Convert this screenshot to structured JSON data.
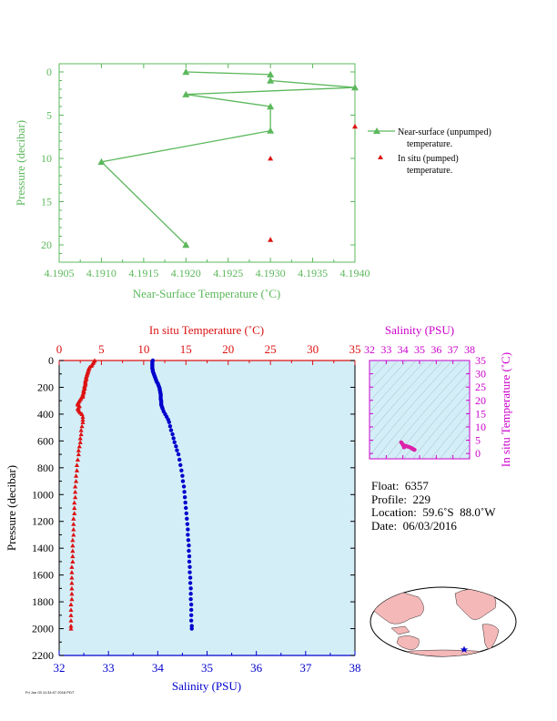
{
  "chart_data": [
    {
      "type": "line",
      "xlabel": "Near-Surface Temperature (˚C)",
      "ylabel": "Pressure (decibar)",
      "xlim": [
        4.1905,
        4.194
      ],
      "ylim": [
        0,
        22
      ],
      "y_inverted": true,
      "x_ticks": [
        "4.1905",
        "4.1910",
        "4.1915",
        "4.1920",
        "4.1925",
        "4.1930",
        "4.1935",
        "4.1940"
      ],
      "y_ticks": [
        "0",
        "5",
        "10",
        "15",
        "20"
      ],
      "legend_position": "right",
      "series": [
        {
          "name": "Near-surface (unpumped) temperature.",
          "legend_line1": "Near-surface (unpumped)",
          "legend_line2": "temperature.",
          "color": "#5cb85c",
          "marker": "triangle",
          "points": [
            {
              "x": 4.192,
              "y": 0.0
            },
            {
              "x": 4.193,
              "y": 0.3
            },
            {
              "x": 4.193,
              "y": 1.0
            },
            {
              "x": 4.194,
              "y": 1.8
            },
            {
              "x": 4.192,
              "y": 2.6
            },
            {
              "x": 4.193,
              "y": 4.0
            },
            {
              "x": 4.193,
              "y": 6.8
            },
            {
              "x": 4.191,
              "y": 10.4
            },
            {
              "x": 4.192,
              "y": 20.0
            }
          ]
        },
        {
          "name": "In situ (pumped) temperature.",
          "legend_line1": "In situ (pumped)",
          "legend_line2": "temperature.",
          "color": "#dd1111",
          "marker": "triangle",
          "points": [
            {
              "x": 4.194,
              "y": 6.3
            },
            {
              "x": 4.193,
              "y": 10.0
            },
            {
              "x": 4.193,
              "y": 19.4
            }
          ]
        }
      ]
    },
    {
      "type": "scatter",
      "xlabel": "Salinity (PSU)",
      "x2label": "In situ Temperature (˚C)",
      "ylabel": "Pressure (decibar)",
      "xlim": [
        32,
        38
      ],
      "x2lim": [
        0,
        35
      ],
      "ylim": [
        0,
        2200
      ],
      "y_inverted": true,
      "x_ticks": [
        "32",
        "33",
        "34",
        "35",
        "36",
        "37",
        "38"
      ],
      "x2_ticks": [
        "0",
        "5",
        "10",
        "15",
        "20",
        "25",
        "30",
        "35"
      ],
      "y_ticks": [
        "0",
        "200",
        "400",
        "600",
        "800",
        "1000",
        "1200",
        "1400",
        "1600",
        "1800",
        "2000",
        "2200"
      ],
      "background": "#d4eef8",
      "series": [
        {
          "name": "In situ Temperature",
          "color": "#dd1111",
          "marker": "triangle",
          "axis": "top",
          "points": [
            [
              4.2,
              0
            ],
            [
              4.1,
              10
            ],
            [
              4.0,
              20
            ],
            [
              3.9,
              30
            ],
            [
              3.8,
              40
            ],
            [
              3.6,
              50
            ],
            [
              3.5,
              60
            ],
            [
              3.5,
              70
            ],
            [
              3.4,
              80
            ],
            [
              3.4,
              90
            ],
            [
              3.3,
              100
            ],
            [
              3.3,
              110
            ],
            [
              3.2,
              120
            ],
            [
              3.2,
              130
            ],
            [
              3.2,
              140
            ],
            [
              3.1,
              150
            ],
            [
              3.1,
              160
            ],
            [
              3.1,
              170
            ],
            [
              3.1,
              180
            ],
            [
              3.0,
              190
            ],
            [
              3.0,
              200
            ],
            [
              3.0,
              210
            ],
            [
              2.9,
              220
            ],
            [
              2.9,
              230
            ],
            [
              2.9,
              240
            ],
            [
              2.8,
              250
            ],
            [
              2.8,
              260
            ],
            [
              2.8,
              270
            ],
            [
              2.6,
              280
            ],
            [
              2.5,
              290
            ],
            [
              2.4,
              300
            ],
            [
              2.3,
              310
            ],
            [
              2.2,
              320
            ],
            [
              2.2,
              330
            ],
            [
              2.4,
              340
            ],
            [
              2.3,
              350
            ],
            [
              2.2,
              360
            ],
            [
              2.3,
              370
            ],
            [
              2.4,
              380
            ],
            [
              2.5,
              390
            ],
            [
              2.7,
              400
            ],
            [
              2.8,
              420
            ],
            [
              2.8,
              440
            ],
            [
              2.8,
              460
            ],
            [
              2.7,
              490
            ],
            [
              2.6,
              520
            ],
            [
              2.6,
              550
            ],
            [
              2.5,
              580
            ],
            [
              2.5,
              610
            ],
            [
              2.4,
              640
            ],
            [
              2.3,
              670
            ],
            [
              2.3,
              700
            ],
            [
              2.2,
              740
            ],
            [
              2.1,
              780
            ],
            [
              2.1,
              820
            ],
            [
              2.0,
              860
            ],
            [
              2.0,
              900
            ],
            [
              1.9,
              940
            ],
            [
              1.9,
              980
            ],
            [
              1.9,
              1020
            ],
            [
              1.8,
              1060
            ],
            [
              1.8,
              1100
            ],
            [
              1.8,
              1140
            ],
            [
              1.7,
              1180
            ],
            [
              1.7,
              1220
            ],
            [
              1.7,
              1260
            ],
            [
              1.7,
              1300
            ],
            [
              1.6,
              1340
            ],
            [
              1.6,
              1380
            ],
            [
              1.6,
              1420
            ],
            [
              1.6,
              1460
            ],
            [
              1.6,
              1500
            ],
            [
              1.5,
              1540
            ],
            [
              1.5,
              1580
            ],
            [
              1.5,
              1620
            ],
            [
              1.5,
              1660
            ],
            [
              1.5,
              1700
            ],
            [
              1.5,
              1740
            ],
            [
              1.5,
              1780
            ],
            [
              1.4,
              1820
            ],
            [
              1.4,
              1860
            ],
            [
              1.4,
              1900
            ],
            [
              1.4,
              1940
            ],
            [
              1.4,
              1980
            ],
            [
              1.4,
              2000
            ]
          ]
        },
        {
          "name": "Salinity",
          "color": "#0000cc",
          "marker": "circle",
          "axis": "bottom",
          "points": [
            [
              33.9,
              0
            ],
            [
              33.89,
              10
            ],
            [
              33.89,
              20
            ],
            [
              33.89,
              30
            ],
            [
              33.89,
              40
            ],
            [
              33.89,
              50
            ],
            [
              33.89,
              60
            ],
            [
              33.9,
              70
            ],
            [
              33.9,
              80
            ],
            [
              33.91,
              90
            ],
            [
              33.92,
              100
            ],
            [
              33.93,
              110
            ],
            [
              33.94,
              120
            ],
            [
              33.95,
              130
            ],
            [
              33.96,
              140
            ],
            [
              33.97,
              150
            ],
            [
              33.98,
              160
            ],
            [
              34.0,
              170
            ],
            [
              34.01,
              180
            ],
            [
              34.02,
              190
            ],
            [
              34.03,
              200
            ],
            [
              34.04,
              210
            ],
            [
              34.04,
              220
            ],
            [
              34.05,
              230
            ],
            [
              34.05,
              240
            ],
            [
              34.06,
              250
            ],
            [
              34.06,
              260
            ],
            [
              34.06,
              270
            ],
            [
              34.06,
              280
            ],
            [
              34.06,
              290
            ],
            [
              34.07,
              300
            ],
            [
              34.07,
              310
            ],
            [
              34.07,
              320
            ],
            [
              34.07,
              330
            ],
            [
              34.08,
              340
            ],
            [
              34.09,
              350
            ],
            [
              34.1,
              360
            ],
            [
              34.12,
              380
            ],
            [
              34.15,
              400
            ],
            [
              34.18,
              420
            ],
            [
              34.21,
              440
            ],
            [
              34.23,
              460
            ],
            [
              34.25,
              490
            ],
            [
              34.27,
              520
            ],
            [
              34.3,
              550
            ],
            [
              34.32,
              580
            ],
            [
              34.34,
              610
            ],
            [
              34.37,
              640
            ],
            [
              34.39,
              670
            ],
            [
              34.42,
              700
            ],
            [
              34.44,
              740
            ],
            [
              34.46,
              780
            ],
            [
              34.48,
              820
            ],
            [
              34.5,
              860
            ],
            [
              34.51,
              900
            ],
            [
              34.53,
              940
            ],
            [
              34.54,
              980
            ],
            [
              34.55,
              1020
            ],
            [
              34.56,
              1060
            ],
            [
              34.57,
              1100
            ],
            [
              34.58,
              1140
            ],
            [
              34.59,
              1180
            ],
            [
              34.6,
              1220
            ],
            [
              34.61,
              1260
            ],
            [
              34.61,
              1300
            ],
            [
              34.62,
              1340
            ],
            [
              34.63,
              1380
            ],
            [
              34.63,
              1420
            ],
            [
              34.64,
              1460
            ],
            [
              34.64,
              1500
            ],
            [
              34.65,
              1540
            ],
            [
              34.65,
              1580
            ],
            [
              34.66,
              1620
            ],
            [
              34.66,
              1660
            ],
            [
              34.67,
              1700
            ],
            [
              34.67,
              1740
            ],
            [
              34.67,
              1780
            ],
            [
              34.68,
              1820
            ],
            [
              34.68,
              1860
            ],
            [
              34.68,
              1900
            ],
            [
              34.68,
              1940
            ],
            [
              34.69,
              1980
            ],
            [
              34.69,
              2000
            ]
          ]
        }
      ]
    },
    {
      "type": "scatter",
      "xlabel": "Salinity (PSU)",
      "ylabel": "In situ Temperature (˚C)",
      "xlim": [
        32,
        38
      ],
      "ylim": [
        -2,
        35
      ],
      "x_ticks": [
        "32",
        "33",
        "34",
        "35",
        "36",
        "37",
        "38"
      ],
      "y_ticks": [
        "0",
        "5",
        "10",
        "15",
        "20",
        "25",
        "30",
        "35"
      ],
      "color": "#dd22aa",
      "points": [
        [
          33.9,
          4.2
        ],
        [
          33.95,
          3.8
        ],
        [
          34.0,
          3.4
        ],
        [
          34.02,
          3.1
        ],
        [
          34.05,
          2.9
        ],
        [
          34.06,
          2.6
        ],
        [
          34.07,
          2.3
        ],
        [
          34.1,
          2.5
        ],
        [
          34.15,
          2.8
        ],
        [
          34.2,
          2.8
        ],
        [
          34.3,
          2.6
        ],
        [
          34.4,
          2.4
        ],
        [
          34.5,
          2.1
        ],
        [
          34.55,
          1.9
        ],
        [
          34.6,
          1.7
        ],
        [
          34.65,
          1.5
        ],
        [
          34.68,
          1.4
        ],
        [
          34.7,
          1.4
        ]
      ]
    }
  ],
  "info": {
    "float": "Float:  6357",
    "profile": "Profile:  229",
    "location": "Location:  59.6˚S  88.0˚W",
    "date": "Date:  06/03/2016"
  },
  "footnote": "Fri Jun 03 11:34:07 2016 PDT",
  "colors": {
    "green": "#5cb85c",
    "red": "#dd1111",
    "blue": "#0000cc",
    "magenta": "#cc00cc",
    "panel_bg": "#d4eef8",
    "land": "#f4b8b8"
  }
}
